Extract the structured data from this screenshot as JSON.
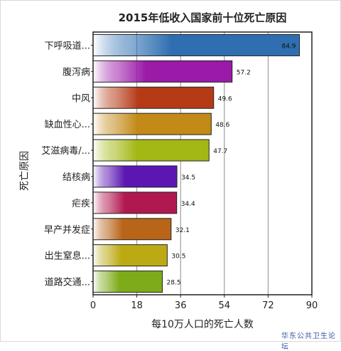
{
  "chart_data": {
    "type": "bar",
    "orientation": "horizontal",
    "title": "2015年低收入国家前十位死亡原因",
    "xlabel": "每10万人口的死亡人数",
    "ylabel": "死亡原因",
    "xlim": [
      0,
      90
    ],
    "xticks": [
      0,
      18,
      36,
      54,
      72,
      90
    ],
    "grid": true,
    "categories": [
      "下呼吸道...",
      "腹泻病",
      "中风",
      "缺血性心...",
      "艾滋病毒/...",
      "结核病",
      "疟疾",
      "早产并发症",
      "出生窒息...",
      "道路交通..."
    ],
    "values": [
      84.9,
      57.2,
      49.6,
      48.6,
      47.7,
      34.5,
      34.4,
      32.1,
      30.5,
      28.5
    ],
    "value_labels": [
      "84.9",
      "57.2",
      "49.6",
      "48.6",
      "47.7",
      "34.5",
      "34.4",
      "32.1",
      "30.5",
      "28.5"
    ],
    "colors": [
      "#2f6fb1",
      "#9b1aa8",
      "#b53a15",
      "#c28a16",
      "#a3b815",
      "#5c17b3",
      "#b21850",
      "#b8651a",
      "#bcaa15",
      "#7eab1a"
    ]
  },
  "watermark": "华东公共卫生论坛"
}
